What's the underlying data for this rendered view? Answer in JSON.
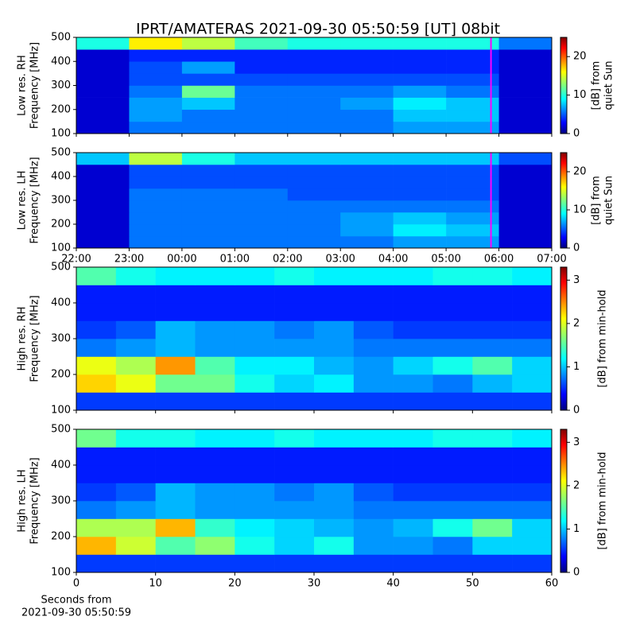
{
  "title": "IPRT/AMATERAS 2021-09-30 05:50:59 [UT]   08bit",
  "chart_data": [
    {
      "type": "heatmap",
      "colormap": "jet",
      "ylabel": [
        "Low res. RH",
        "Frequency [MHz]"
      ],
      "xlim": [
        0,
        9
      ],
      "xticks": [
        0,
        1,
        2,
        3,
        4,
        5,
        6,
        7,
        8,
        9
      ],
      "x_tick_labels_shown": false,
      "ylim": [
        100,
        500
      ],
      "yticks": [
        100,
        200,
        300,
        400,
        500
      ],
      "x_edges": [
        0,
        1,
        2,
        3,
        4,
        5,
        6,
        7,
        8,
        9
      ],
      "y_edges": [
        100,
        150,
        200,
        250,
        300,
        350,
        400,
        450,
        500
      ],
      "z": [
        [
          2,
          6,
          6,
          6,
          6,
          6,
          7,
          7,
          2
        ],
        [
          2,
          7,
          6,
          6,
          6,
          6,
          8,
          8,
          2
        ],
        [
          2,
          7,
          8,
          6,
          6,
          7,
          9,
          8,
          2
        ],
        [
          2,
          6,
          12,
          6,
          6,
          6,
          7,
          6,
          2
        ],
        [
          2,
          5,
          5,
          5,
          5,
          5,
          5,
          5,
          2
        ],
        [
          2,
          5,
          7,
          4,
          4,
          4,
          4,
          4,
          2
        ],
        [
          2,
          4,
          4,
          4,
          4,
          4,
          4,
          4,
          2
        ],
        [
          10,
          16,
          14,
          11,
          10,
          10,
          10,
          10,
          6
        ]
      ],
      "clim": [
        0,
        25
      ],
      "cbar_ticks": [
        0,
        10,
        20
      ],
      "cbar_label": [
        "[dB] from",
        "quiet Sun"
      ],
      "marker_x": 7.85,
      "marker_color": "#ff00ff"
    },
    {
      "type": "heatmap",
      "colormap": "jet",
      "ylabel": [
        "Low res. LH",
        "Frequency [MHz]"
      ],
      "xlim": [
        0,
        9
      ],
      "xticks": [
        {
          "value": 0,
          "label": "22:00"
        },
        {
          "value": 1,
          "label": "23:00"
        },
        {
          "value": 2,
          "label": "00:00"
        },
        {
          "value": 3,
          "label": "01:00"
        },
        {
          "value": 4,
          "label": "02:00"
        },
        {
          "value": 5,
          "label": "03:00"
        },
        {
          "value": 6,
          "label": "04:00"
        },
        {
          "value": 7,
          "label": "05:00"
        },
        {
          "value": 8,
          "label": "06:00"
        },
        {
          "value": 9,
          "label": "07:00"
        }
      ],
      "x_tick_labels_shown": true,
      "ylim": [
        100,
        500
      ],
      "yticks": [
        100,
        200,
        300,
        400,
        500
      ],
      "x_edges": [
        0,
        1,
        2,
        3,
        4,
        5,
        6,
        7,
        8,
        9
      ],
      "y_edges": [
        100,
        150,
        200,
        250,
        300,
        350,
        400,
        450,
        500
      ],
      "z": [
        [
          2,
          6,
          6,
          6,
          6,
          6,
          7,
          7,
          2
        ],
        [
          2,
          6,
          6,
          6,
          6,
          7,
          9,
          8,
          2
        ],
        [
          2,
          6,
          6,
          6,
          6,
          7,
          8,
          7,
          2
        ],
        [
          2,
          6,
          6,
          6,
          6,
          6,
          6,
          6,
          2
        ],
        [
          2,
          6,
          6,
          6,
          5,
          5,
          5,
          5,
          2
        ],
        [
          2,
          5,
          5,
          5,
          5,
          5,
          5,
          5,
          2
        ],
        [
          2,
          5,
          5,
          5,
          5,
          5,
          5,
          5,
          2
        ],
        [
          8,
          14,
          10,
          8,
          8,
          8,
          8,
          8,
          5
        ]
      ],
      "clim": [
        0,
        25
      ],
      "cbar_ticks": [
        0,
        10,
        20
      ],
      "cbar_label": [
        "[dB] from",
        "quiet Sun"
      ],
      "marker_x": 7.85,
      "marker_color": "#ff00ff"
    },
    {
      "type": "heatmap",
      "colormap": "jet",
      "ylabel": [
        "High res. RH",
        "Frequency [MHz]"
      ],
      "xlim": [
        0,
        60
      ],
      "xticks": [
        0,
        10,
        20,
        30,
        40,
        50,
        60
      ],
      "x_tick_labels_shown": false,
      "ylim": [
        100,
        500
      ],
      "yticks": [
        100,
        200,
        300,
        400,
        500
      ],
      "x_edges": [
        0,
        5,
        10,
        15,
        20,
        25,
        30,
        35,
        40,
        45,
        50,
        55,
        60
      ],
      "y_edges": [
        100,
        150,
        200,
        250,
        300,
        350,
        400,
        450,
        500
      ],
      "z": [
        [
          0.6,
          0.6,
          0.6,
          0.6,
          0.6,
          0.6,
          0.6,
          0.6,
          0.6,
          0.6,
          0.6,
          0.6
        ],
        [
          2.2,
          2.0,
          1.6,
          1.6,
          1.3,
          1.1,
          1.2,
          0.9,
          0.9,
          0.8,
          1.0,
          1.1
        ],
        [
          2.0,
          1.8,
          2.4,
          1.5,
          1.2,
          1.2,
          1.0,
          0.9,
          1.1,
          1.3,
          1.5,
          1.1
        ],
        [
          0.8,
          0.9,
          1.0,
          0.9,
          0.9,
          0.9,
          0.9,
          0.8,
          0.8,
          0.8,
          0.8,
          0.8
        ],
        [
          0.6,
          0.7,
          1.0,
          0.9,
          0.9,
          0.8,
          0.9,
          0.7,
          0.6,
          0.6,
          0.6,
          0.6
        ],
        [
          0.5,
          0.5,
          0.5,
          0.5,
          0.5,
          0.5,
          0.5,
          0.5,
          0.5,
          0.5,
          0.5,
          0.5
        ],
        [
          0.5,
          0.5,
          0.5,
          0.5,
          0.5,
          0.5,
          0.5,
          0.5,
          0.5,
          0.5,
          0.5,
          0.5
        ],
        [
          1.5,
          1.3,
          1.2,
          1.2,
          1.2,
          1.3,
          1.2,
          1.2,
          1.2,
          1.3,
          1.3,
          1.2
        ]
      ],
      "clim": [
        0,
        3.3
      ],
      "cbar_ticks": [
        0,
        1,
        2,
        3
      ],
      "cbar_label": [
        "[dB] from min-hold"
      ]
    },
    {
      "type": "heatmap",
      "colormap": "jet",
      "ylabel": [
        "High res. LH",
        "Frequency [MHz]"
      ],
      "xlim": [
        0,
        60
      ],
      "xticks": [
        0,
        10,
        20,
        30,
        40,
        50,
        60
      ],
      "x_tick_labels_shown": true,
      "xlabel": [
        "Seconds from",
        "2021-09-30 05:50:59"
      ],
      "ylim": [
        100,
        500
      ],
      "yticks": [
        100,
        200,
        300,
        400,
        500
      ],
      "x_edges": [
        0,
        5,
        10,
        15,
        20,
        25,
        30,
        35,
        40,
        45,
        50,
        55,
        60
      ],
      "y_edges": [
        100,
        150,
        200,
        250,
        300,
        350,
        400,
        450,
        500
      ],
      "z": [
        [
          0.6,
          0.6,
          0.6,
          0.6,
          0.6,
          0.6,
          0.6,
          0.6,
          0.6,
          0.6,
          0.6,
          0.6
        ],
        [
          2.3,
          1.9,
          1.5,
          1.7,
          1.3,
          1.1,
          1.3,
          0.9,
          0.9,
          0.8,
          1.1,
          1.1
        ],
        [
          1.8,
          1.8,
          2.3,
          1.4,
          1.2,
          1.1,
          1.0,
          0.9,
          1.0,
          1.3,
          1.6,
          1.1
        ],
        [
          0.8,
          0.9,
          1.0,
          0.9,
          0.9,
          0.9,
          0.9,
          0.8,
          0.8,
          0.8,
          0.8,
          0.8
        ],
        [
          0.6,
          0.7,
          1.0,
          0.9,
          0.9,
          0.8,
          0.9,
          0.7,
          0.6,
          0.6,
          0.6,
          0.6
        ],
        [
          0.5,
          0.5,
          0.5,
          0.5,
          0.5,
          0.5,
          0.5,
          0.5,
          0.5,
          0.5,
          0.5,
          0.5
        ],
        [
          0.5,
          0.5,
          0.5,
          0.5,
          0.5,
          0.5,
          0.5,
          0.5,
          0.5,
          0.5,
          0.5,
          0.5
        ],
        [
          1.6,
          1.3,
          1.3,
          1.2,
          1.2,
          1.3,
          1.2,
          1.2,
          1.2,
          1.3,
          1.3,
          1.2
        ]
      ],
      "clim": [
        0,
        3.3
      ],
      "cbar_ticks": [
        0,
        1,
        2,
        3
      ],
      "cbar_label": [
        "[dB] from min-hold"
      ]
    }
  ]
}
